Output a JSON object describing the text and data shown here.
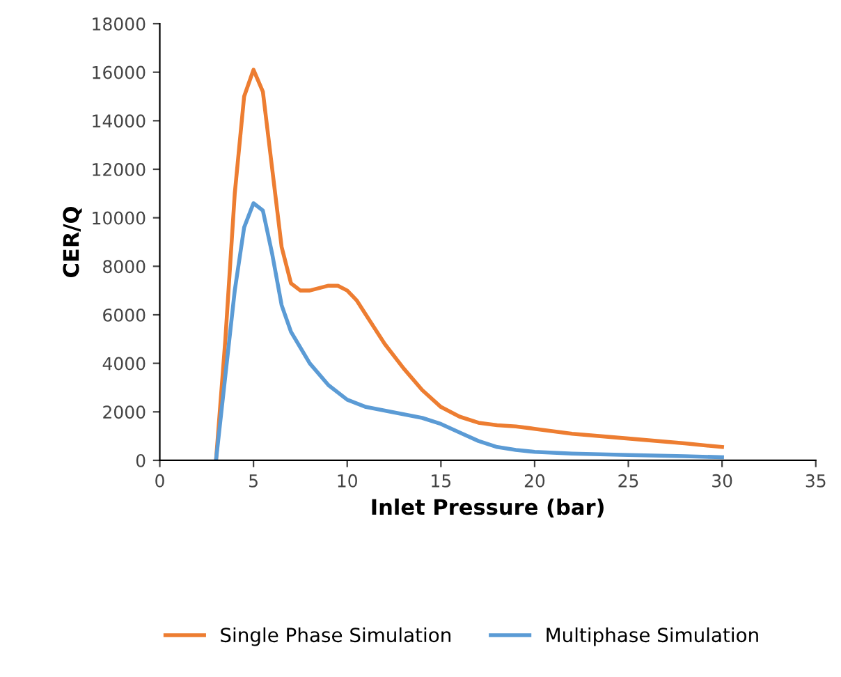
{
  "chart_data": {
    "type": "line",
    "xlabel": "Inlet Pressure (bar)",
    "ylabel": "CER/Q",
    "xlim": [
      0,
      35
    ],
    "xticks": [
      0,
      5,
      10,
      15,
      20,
      25,
      30,
      35
    ],
    "ylim": [
      0,
      18000
    ],
    "yticks": [
      0,
      2000,
      4000,
      6000,
      8000,
      10000,
      12000,
      14000,
      16000,
      18000
    ],
    "grid": false,
    "legend": "bottom",
    "marker": "none",
    "line_style": "solid",
    "series": [
      {
        "name": "Single Phase Simulation",
        "color": "#ed7d31",
        "x": [
          3,
          3.5,
          4,
          4.5,
          5,
          5.5,
          6,
          6.5,
          7,
          7.5,
          8,
          9,
          9.5,
          10,
          10.5,
          11,
          12,
          13,
          14,
          15,
          16,
          17,
          18,
          19,
          20,
          22,
          25,
          28,
          30
        ],
        "values": [
          0,
          5000,
          11000,
          15000,
          16100,
          15200,
          12000,
          8800,
          7300,
          7000,
          7000,
          7200,
          7200,
          7000,
          6600,
          6000,
          4800,
          3800,
          2900,
          2200,
          1800,
          1550,
          1450,
          1400,
          1300,
          1100,
          900,
          700,
          550
        ]
      },
      {
        "name": "Multiphase Simulation",
        "color": "#5b9bd5",
        "x": [
          3,
          3.5,
          4,
          4.5,
          5,
          5.5,
          6,
          6.5,
          7,
          8,
          9,
          10,
          11,
          12,
          13,
          14,
          15,
          16,
          17,
          18,
          19,
          20,
          22,
          25,
          28,
          30
        ],
        "values": [
          0,
          3500,
          7000,
          9600,
          10600,
          10300,
          8500,
          6400,
          5300,
          4000,
          3100,
          2500,
          2200,
          2050,
          1900,
          1750,
          1500,
          1150,
          800,
          550,
          430,
          350,
          280,
          220,
          170,
          130
        ]
      }
    ]
  }
}
